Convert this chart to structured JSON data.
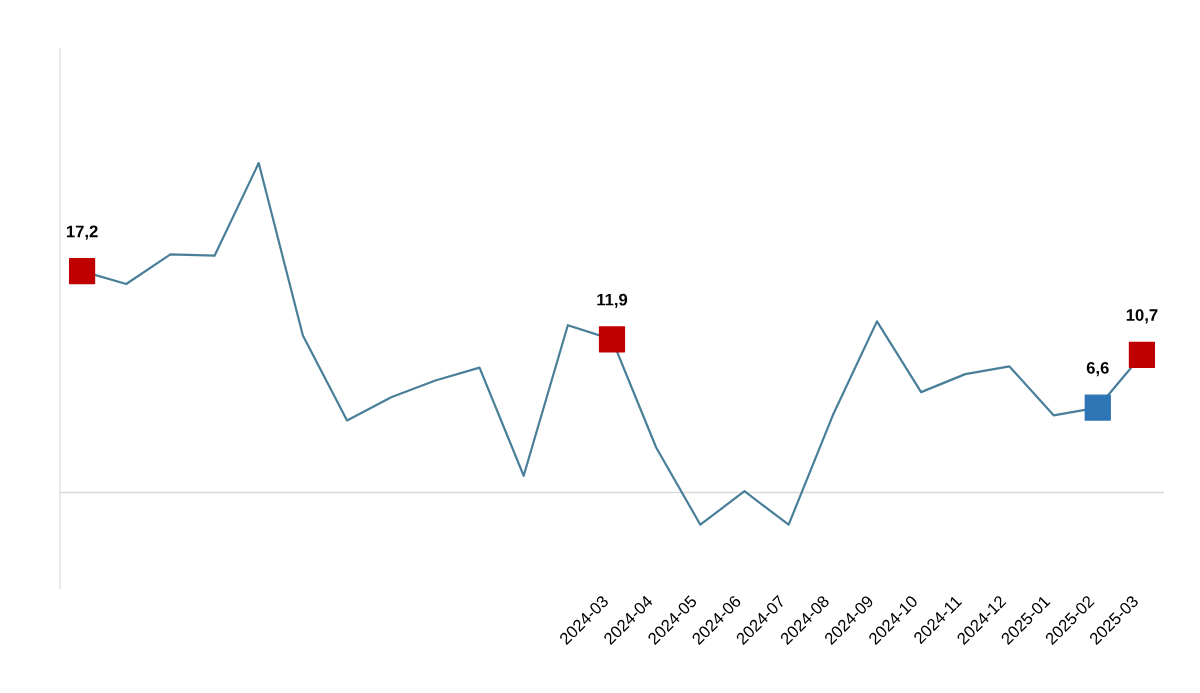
{
  "chart_data": {
    "type": "line",
    "tick_labels": "x",
    "grid": false,
    "legend": false,
    "line_style": "solid",
    "categories": [
      null,
      null,
      null,
      null,
      null,
      null,
      null,
      null,
      null,
      null,
      null,
      null,
      "2024-03",
      "2024-04",
      "2024-05",
      "2024-06",
      "2024-07",
      "2024-08",
      "2024-09",
      "2024-10",
      "2024-11",
      "2024-12",
      "2025-01",
      "2025-02",
      "2025-03"
    ],
    "ref_lines": [
      {
        "axis": "y",
        "value": 0,
        "label": null,
        "color": "#d9d9d9"
      }
    ],
    "series": [
      {
        "color": "#4a7f9a",
        "values": [
          17.2,
          16.2,
          18.5,
          18.4,
          25.6,
          12.2,
          5.6,
          7.4,
          8.7,
          9.7,
          1.3,
          13.0,
          11.9,
          3.5,
          -2.5,
          0.1,
          -2.5,
          6.0,
          13.3,
          7.8,
          9.2,
          9.8,
          6.0,
          6.6,
          10.7
        ],
        "colors": [
          "#c00000",
          null,
          null,
          null,
          null,
          null,
          null,
          null,
          null,
          null,
          null,
          null,
          "#c00000",
          null,
          null,
          null,
          null,
          null,
          null,
          null,
          null,
          null,
          null,
          "#2e75b6",
          "#c00000"
        ],
        "value_labels": [
          "17,2",
          null,
          null,
          null,
          null,
          null,
          null,
          null,
          null,
          null,
          null,
          null,
          "11,9",
          null,
          null,
          null,
          null,
          null,
          null,
          null,
          null,
          null,
          null,
          "6,6",
          "10,7"
        ]
      }
    ]
  }
}
